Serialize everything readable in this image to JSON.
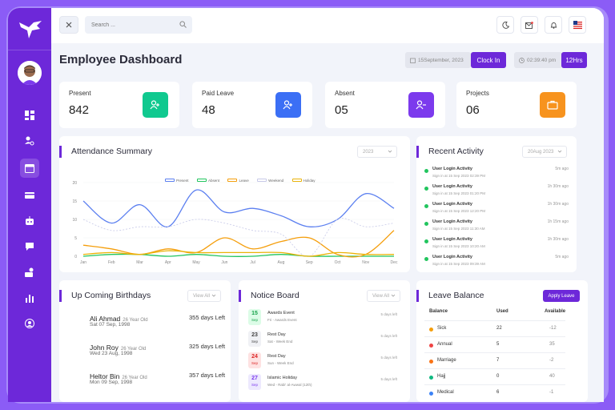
{
  "topbar": {
    "search_placeholder": "Search ...",
    "icons": [
      "moon-icon",
      "mail-icon",
      "bell-icon",
      "flag-us-icon"
    ]
  },
  "page": {
    "title": "Employee Dashboard",
    "date": "15September, 2023",
    "clock_in": "Clock In",
    "time": "02:39:40 pm",
    "hours": "12Hrs"
  },
  "stats": [
    {
      "label": "Present",
      "value": "842",
      "color": "#10c98f"
    },
    {
      "label": "Paid Leave",
      "value": "48",
      "color": "#3b6ff5"
    },
    {
      "label": "Absent",
      "value": "05",
      "color": "#7c3aed"
    },
    {
      "label": "Projects",
      "value": "06",
      "color": "#f7931e"
    }
  ],
  "attendance": {
    "title": "Attendance Summary",
    "year": "2023"
  },
  "chart_data": {
    "type": "line",
    "title": "Attendance Summary",
    "categories": [
      "Jan",
      "Feb",
      "Mar",
      "Apr",
      "May",
      "Jun",
      "Jul",
      "Aug",
      "Sep",
      "Oct",
      "Nov",
      "Dec"
    ],
    "ylim": [
      0,
      20
    ],
    "yticks": [
      0,
      5,
      10,
      15,
      20
    ],
    "legend": [
      "Present",
      "Absent",
      "Leave",
      "Weekend",
      "Holiday"
    ],
    "series": [
      {
        "name": "Present",
        "color": "#5b7ff0",
        "dash": false,
        "values": [
          15,
          9,
          14,
          8,
          18,
          12,
          13,
          11,
          8,
          10,
          17,
          13
        ]
      },
      {
        "name": "Absent",
        "color": "#22c55e",
        "dash": false,
        "values": [
          0,
          0.5,
          0.5,
          0,
          0.5,
          0,
          0,
          0.5,
          0,
          0,
          0,
          0
        ]
      },
      {
        "name": "Leave",
        "color": "#f59e0b",
        "dash": false,
        "values": [
          3,
          2,
          0.5,
          2,
          1,
          5,
          2,
          4,
          5,
          0.5,
          0.5,
          7
        ]
      },
      {
        "name": "Weekend",
        "color": "#c7c9e8",
        "dash": true,
        "values": [
          10,
          7,
          8,
          8,
          10,
          9,
          7,
          6,
          0,
          10,
          8,
          9
        ]
      },
      {
        "name": "Holiday",
        "color": "#eab308",
        "dash": false,
        "values": [
          0.5,
          1,
          0.5,
          1.5,
          1,
          1,
          1,
          1,
          0,
          1,
          0.5,
          0.5
        ]
      }
    ]
  },
  "activity": {
    "title": "Recent Activity",
    "filter": "20Aug 2023",
    "items": [
      {
        "title": "User Login Activity",
        "sub": "Sign in at 15 Sep 2023 02:39 PM",
        "time": "5m ago"
      },
      {
        "title": "User Login Activity",
        "sub": "Sign in at 15 Sep 2023 01:20 PM",
        "time": "1h 30m ago"
      },
      {
        "title": "User Login Activity",
        "sub": "Sign in at 15 Sep 2023 12:20 PM",
        "time": "1h 30m ago"
      },
      {
        "title": "User Login Activity",
        "sub": "Sign in at 15 Sep 2023 11:30 AM",
        "time": "1h 15m ago"
      },
      {
        "title": "User Login Activity",
        "sub": "Sign in at 15 Sep 2023 10:20 AM",
        "time": "1h 30m ago"
      },
      {
        "title": "User Login Activity",
        "sub": "Sign in at 15 Sep 2023 09:39 AM",
        "time": "5m ago"
      }
    ]
  },
  "birthdays": {
    "title": "Up Coming Birthdays",
    "filter": "View All",
    "items": [
      {
        "name": "Ali Ahmad",
        "age": "26 Year Old",
        "date": "Sat 07 Sep, 1998",
        "left": "355 days Left"
      },
      {
        "name": "John Roy",
        "age": "26 Year Old",
        "date": "Wed 23 Aug, 1998",
        "left": "325 days Left"
      },
      {
        "name": "Heltor Bin",
        "age": "26 Year Old",
        "date": "Mon 09 Sep, 1998",
        "left": "357 days Left"
      }
    ]
  },
  "notices": {
    "title": "Notice Board",
    "filter": "View All",
    "items": [
      {
        "day": "15",
        "dw": "Sep",
        "title": "Awards Event",
        "sub": "Fri - Awards Event",
        "time": "5 days left",
        "color": "#16a34a",
        "bg": "#dcfce7"
      },
      {
        "day": "23",
        "dw": "Sep",
        "title": "Rest Day",
        "sub": "Sat - Week End",
        "time": "5 days left",
        "color": "#444",
        "bg": "#f0f1f5"
      },
      {
        "day": "24",
        "dw": "Sep",
        "title": "Rest Day",
        "sub": "Sun - Week End",
        "time": "5 days left",
        "color": "#dc2626",
        "bg": "#fee2e2"
      },
      {
        "day": "27",
        "dw": "Sep",
        "title": "Islamic Holiday",
        "sub": "Wed - Rabi' al-Awwal (12th)",
        "time": "5 days left",
        "color": "#7c3aed",
        "bg": "#ede9fe"
      }
    ]
  },
  "leave": {
    "title": "Leave Balance",
    "apply": "Apply Leave",
    "headers": {
      "balance": "Balance",
      "used": "Used",
      "available": "Available"
    },
    "rows": [
      {
        "name": "Sick",
        "used": "22",
        "available": "-12",
        "color": "#f59e0b"
      },
      {
        "name": "Annual",
        "used": "5",
        "available": "35",
        "color": "#ef4444"
      },
      {
        "name": "Marriage",
        "used": "7",
        "available": "-2",
        "color": "#f97316"
      },
      {
        "name": "Hajj",
        "used": "0",
        "available": "40",
        "color": "#10b981"
      },
      {
        "name": "Medical",
        "used": "6",
        "available": "-1",
        "color": "#3b82f6"
      }
    ]
  }
}
